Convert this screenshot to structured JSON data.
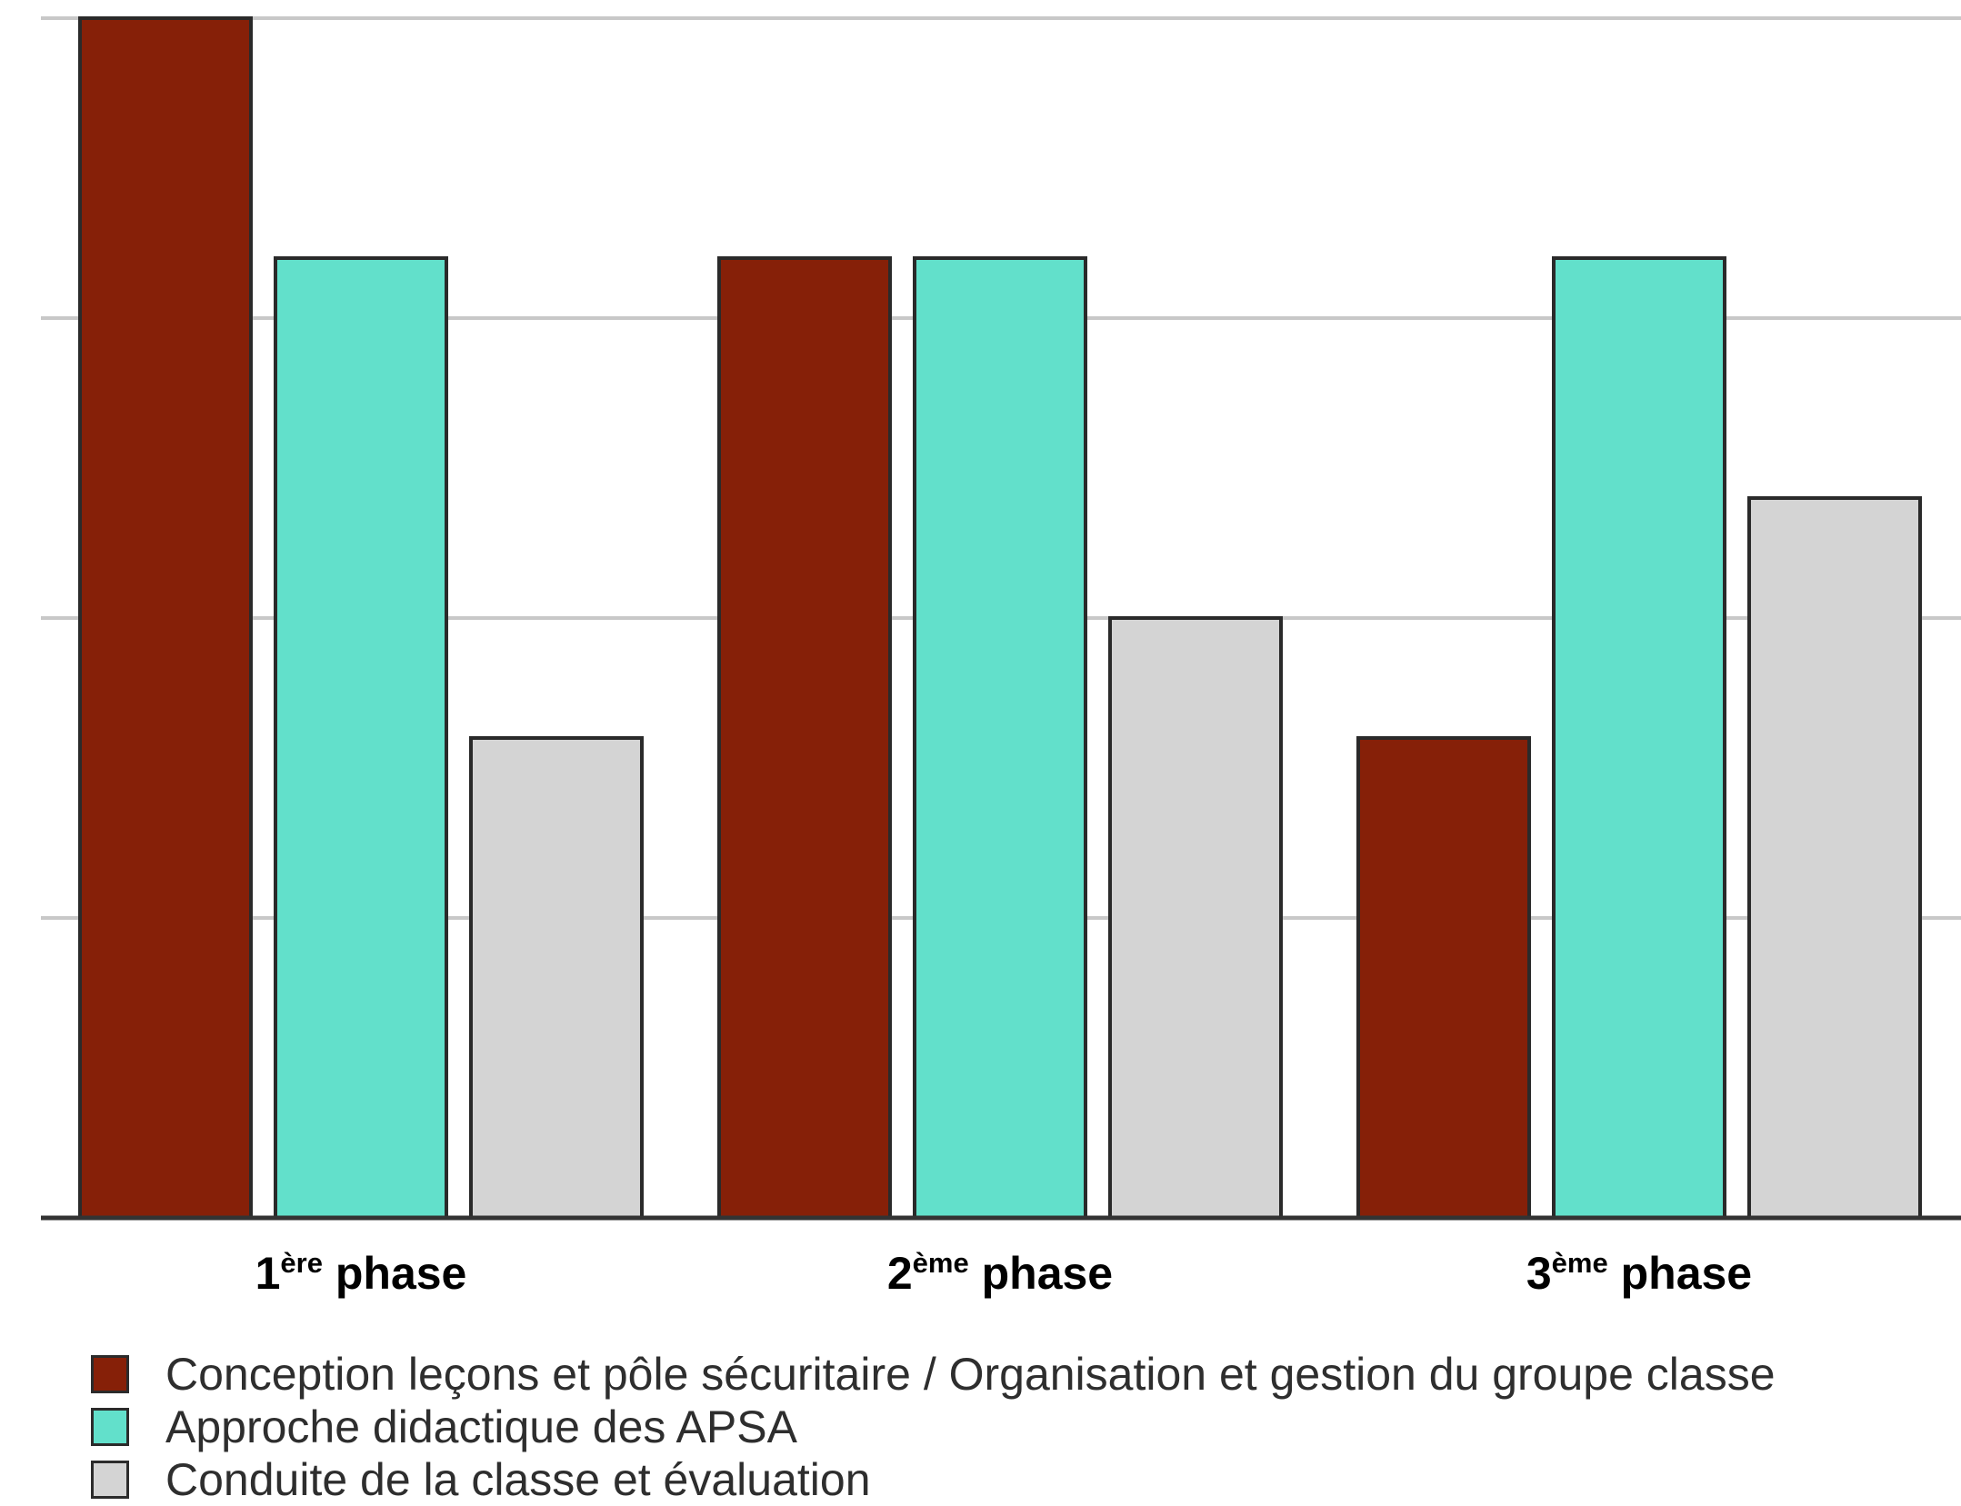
{
  "chart_data": {
    "type": "bar",
    "categories": [
      {
        "main": "1",
        "sup": "ère",
        "rest": " phase"
      },
      {
        "main": "2",
        "sup": "ème",
        "rest": " phase"
      },
      {
        "main": "3",
        "sup": "ème",
        "rest": " phase"
      }
    ],
    "series": [
      {
        "name": "Conception leçons et pôle sécuritaire / Organisation et gestion du groupe classe",
        "color": "#862008",
        "values": [
          4,
          3.2,
          1.6
        ]
      },
      {
        "name": "Approche didactique des APSA",
        "color": "#62e0cb",
        "values": [
          3.2,
          3.2,
          3.2
        ]
      },
      {
        "name": "Conduite de la classe et évaluation",
        "color": "#d4d4d4",
        "values": [
          1.6,
          2,
          2.4
        ]
      }
    ],
    "ylim": [
      0,
      4
    ],
    "yticks": [
      0,
      1,
      2,
      3,
      4
    ],
    "grid": true,
    "legend_position": "bottom-left"
  }
}
